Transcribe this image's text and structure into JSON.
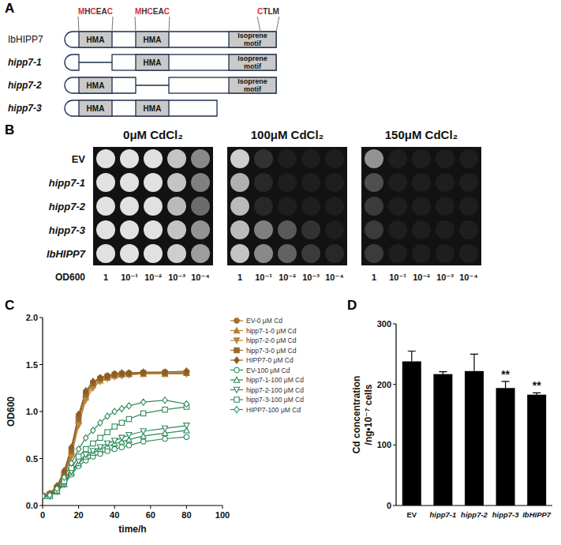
{
  "panel_labels": [
    "A",
    "B",
    "C",
    "D"
  ],
  "diagram": {
    "motifs": [
      {
        "parts": [
          "M",
          "H",
          "C",
          "EA",
          "C"
        ],
        "colors": [
          "#e3262f",
          "#333333",
          "#e3262f",
          "#333333",
          "#e3262f"
        ]
      },
      {
        "parts": [
          "M",
          "H",
          "C",
          "EA",
          "C"
        ],
        "colors": [
          "#e3262f",
          "#333333",
          "#e3262f",
          "#333333",
          "#e3262f"
        ]
      },
      {
        "parts": [
          "C",
          "TLM"
        ],
        "colors": [
          "#e3262f",
          "#333333"
        ]
      }
    ],
    "proteins": [
      {
        "name": "IbHIPP7",
        "italic": false,
        "domains": [
          "HMA",
          "HMA",
          "Isoprene motif"
        ]
      },
      {
        "name": "hipp7-1",
        "italic": true,
        "domains": [
          null,
          "HMA",
          "Isoprene motif"
        ]
      },
      {
        "name": "hipp7-2",
        "italic": true,
        "domains": [
          "HMA",
          null,
          "Isoprene motif"
        ]
      },
      {
        "name": "hipp7-3",
        "italic": true,
        "domains": [
          "HMA",
          "HMA"
        ]
      }
    ]
  },
  "spot_assay": {
    "row_labels": [
      "EV",
      "hipp7-1",
      "hipp7-2",
      "hipp7-3",
      "IbHIPP7"
    ],
    "axis_label": "OD600",
    "column_labels": [
      "1",
      "10⁻¹",
      "10⁻²",
      "10⁻³",
      "10⁻⁴"
    ],
    "panels": [
      {
        "title": "0μM CdCl₂",
        "growth": [
          [
            1,
            1,
            1,
            0.85,
            0.55
          ],
          [
            1,
            1,
            1,
            0.85,
            0.5
          ],
          [
            1,
            1,
            1,
            0.8,
            0.4
          ],
          [
            1,
            1,
            1,
            0.85,
            0.6
          ],
          [
            1,
            1,
            1,
            0.9,
            0.65
          ]
        ]
      },
      {
        "title": "100μM CdCl₂",
        "growth": [
          [
            0.9,
            0.1,
            0,
            0,
            0
          ],
          [
            0.75,
            0.05,
            0,
            0,
            0
          ],
          [
            0.8,
            0.05,
            0,
            0,
            0
          ],
          [
            0.8,
            0.5,
            0.3,
            0.1,
            0
          ],
          [
            0.85,
            0.55,
            0.35,
            0.15,
            0.05
          ]
        ]
      },
      {
        "title": "150μM CdCl₂",
        "growth": [
          [
            0.6,
            0,
            0,
            0,
            0
          ],
          [
            0.25,
            0,
            0,
            0,
            0
          ],
          [
            0.15,
            0,
            0,
            0,
            0
          ],
          [
            0.15,
            0,
            0,
            0,
            0
          ],
          [
            0.15,
            0,
            0,
            0,
            0
          ]
        ]
      }
    ]
  },
  "chart_data": [
    {
      "type": "line",
      "xlabel": "time/h",
      "ylabel": "OD600",
      "x": [
        0,
        4,
        8,
        12,
        16,
        20,
        24,
        28,
        32,
        36,
        40,
        44,
        48,
        56,
        68,
        80
      ],
      "xlim": [
        0,
        100
      ],
      "xticks": [
        0,
        20,
        40,
        60,
        80,
        100
      ],
      "ylim": [
        0,
        2
      ],
      "yticks": [
        {
          "value": 0,
          "label": "0.0"
        },
        {
          "value": 0.5,
          "label": "0.5"
        },
        {
          "value": 1,
          "label": "1.0"
        },
        {
          "value": 1.5,
          "label": "1.5"
        },
        {
          "value": 2,
          "label": "2.0"
        }
      ],
      "legend": "right",
      "series": [
        {
          "name": "EV-0 μM Cd",
          "color": "#a0712c",
          "marker": "circle",
          "values": [
            0.1,
            0.12,
            0.2,
            0.35,
            0.6,
            0.95,
            1.2,
            1.3,
            1.35,
            1.38,
            1.4,
            1.4,
            1.41,
            1.41,
            1.42,
            1.42
          ]
        },
        {
          "name": "hipp7-1-0 μM Cd",
          "color": "#b07e35",
          "marker": "triangle",
          "values": [
            0.1,
            0.12,
            0.18,
            0.32,
            0.55,
            0.9,
            1.15,
            1.28,
            1.33,
            1.36,
            1.38,
            1.39,
            1.4,
            1.4,
            1.4,
            1.41
          ]
        },
        {
          "name": "hipp7-2-0 μM Cd",
          "color": "#b8873c",
          "marker": "triangle-down",
          "values": [
            0.1,
            0.11,
            0.17,
            0.3,
            0.52,
            0.85,
            1.12,
            1.25,
            1.32,
            1.35,
            1.37,
            1.38,
            1.39,
            1.4,
            1.4,
            1.4
          ]
        },
        {
          "name": "hipp7-3-0 μM Cd",
          "color": "#9a6a2a",
          "marker": "square",
          "values": [
            0.1,
            0.12,
            0.19,
            0.33,
            0.58,
            0.92,
            1.18,
            1.3,
            1.35,
            1.37,
            1.39,
            1.4,
            1.4,
            1.41,
            1.41,
            1.41
          ]
        },
        {
          "name": "HIPP7-0 μM Cd",
          "color": "#8c5e24",
          "marker": "diamond",
          "values": [
            0.1,
            0.13,
            0.21,
            0.37,
            0.62,
            0.97,
            1.22,
            1.32,
            1.36,
            1.38,
            1.4,
            1.41,
            1.41,
            1.42,
            1.42,
            1.43
          ]
        },
        {
          "name": "EV-100 μM Cd",
          "color": "#2f8a5c",
          "marker": "circle-open",
          "values": [
            0.1,
            0.1,
            0.15,
            0.22,
            0.33,
            0.42,
            0.48,
            0.52,
            0.55,
            0.58,
            0.6,
            0.62,
            0.64,
            0.68,
            0.71,
            0.73
          ]
        },
        {
          "name": "hipp7-1-100 μM Cd",
          "color": "#2f8a5c",
          "marker": "triangle-open",
          "values": [
            0.1,
            0.1,
            0.15,
            0.23,
            0.35,
            0.45,
            0.52,
            0.56,
            0.6,
            0.63,
            0.66,
            0.68,
            0.7,
            0.74,
            0.77,
            0.8
          ]
        },
        {
          "name": "hipp7-2-100 μM Cd",
          "color": "#2f8a5c",
          "marker": "triangle-down-open",
          "values": [
            0.1,
            0.1,
            0.15,
            0.24,
            0.36,
            0.47,
            0.54,
            0.58,
            0.62,
            0.66,
            0.69,
            0.72,
            0.75,
            0.79,
            0.82,
            0.85
          ]
        },
        {
          "name": "hipp7-3-100 μM Cd",
          "color": "#2f8a5c",
          "marker": "square-open",
          "values": [
            0.1,
            0.1,
            0.16,
            0.26,
            0.4,
            0.52,
            0.6,
            0.66,
            0.72,
            0.78,
            0.84,
            0.88,
            0.92,
            0.98,
            1.02,
            1.05
          ]
        },
        {
          "name": "HIPP7-100 μM Cd",
          "color": "#2f8a5c",
          "marker": "diamond-open",
          "values": [
            0.1,
            0.11,
            0.18,
            0.3,
            0.45,
            0.6,
            0.72,
            0.8,
            0.88,
            0.95,
            1.0,
            1.03,
            1.06,
            1.1,
            1.12,
            1.08
          ]
        }
      ]
    },
    {
      "type": "bar",
      "ylabel": [
        "Cd concentration",
        "/ng•10⁻⁷ cells"
      ],
      "categories": [
        "EV",
        "hipp7-1",
        "hipp7-2",
        "hipp7-3",
        "IbHIPP7"
      ],
      "values": [
        238,
        217,
        222,
        194,
        183
      ],
      "errors": [
        17,
        4,
        28,
        11,
        3
      ],
      "color": "#000000",
      "ylim": [
        0,
        300
      ],
      "yticks": [
        0,
        100,
        200,
        300
      ],
      "annotations": [
        {
          "category": "hipp7-3",
          "text": "**"
        },
        {
          "category": "IbHIPP7",
          "text": "**"
        }
      ]
    }
  ]
}
